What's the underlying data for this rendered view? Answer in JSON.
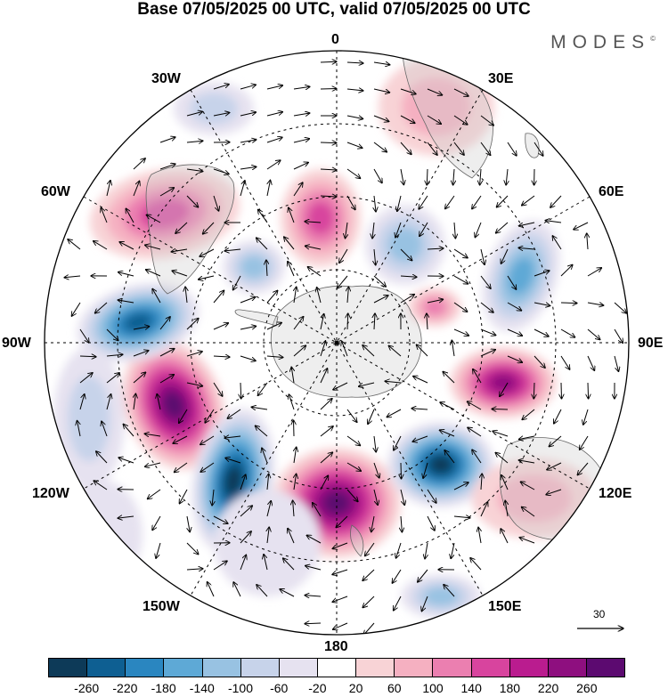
{
  "title": "Base 07/05/2025 00 UTC, valid 07/05/2025 00 UTC",
  "brand": "MODES",
  "brand_mark": "©",
  "longitude_labels": {
    "top": "0",
    "top_right": "30E",
    "right_upper": "60E",
    "right": "90E",
    "right_lower": "120E",
    "bottom_right": "150E",
    "bottom": "180",
    "bottom_left": "150W",
    "left_lower": "120W",
    "left": "90W",
    "left_upper": "60W",
    "top_left": "30W"
  },
  "reference_vector_label": "30",
  "colorbar": {
    "colors": [
      "#0d3a58",
      "#0e5f92",
      "#2a86c0",
      "#5ea9d6",
      "#98c2e2",
      "#c7d3ea",
      "#e6e2f0",
      "#ffffff",
      "#f8d3d6",
      "#f5b0c1",
      "#eb7fb0",
      "#d8449e",
      "#ba1c8f",
      "#8e0f7f",
      "#5c0a70"
    ],
    "ticks": [
      "-260",
      "-220",
      "-180",
      "-140",
      "-100",
      "-60",
      "-20",
      "20",
      "60",
      "100",
      "140",
      "180",
      "220",
      "260"
    ]
  },
  "anomaly_centers": [
    {
      "sign": "positive",
      "level": 260,
      "region": "near 180"
    },
    {
      "sign": "positive",
      "level": 260,
      "region": "near 105W"
    },
    {
      "sign": "positive",
      "level": 220,
      "region": "near 95E"
    },
    {
      "sign": "negative",
      "level": -260,
      "region": "near 140W"
    },
    {
      "sign": "negative",
      "level": -260,
      "region": "near 130E"
    },
    {
      "sign": "negative",
      "level": -220,
      "region": "near 85W"
    },
    {
      "sign": "positive",
      "level": 140,
      "region": "near 60W"
    },
    {
      "sign": "positive",
      "level": 140,
      "region": "near 15W"
    }
  ]
}
